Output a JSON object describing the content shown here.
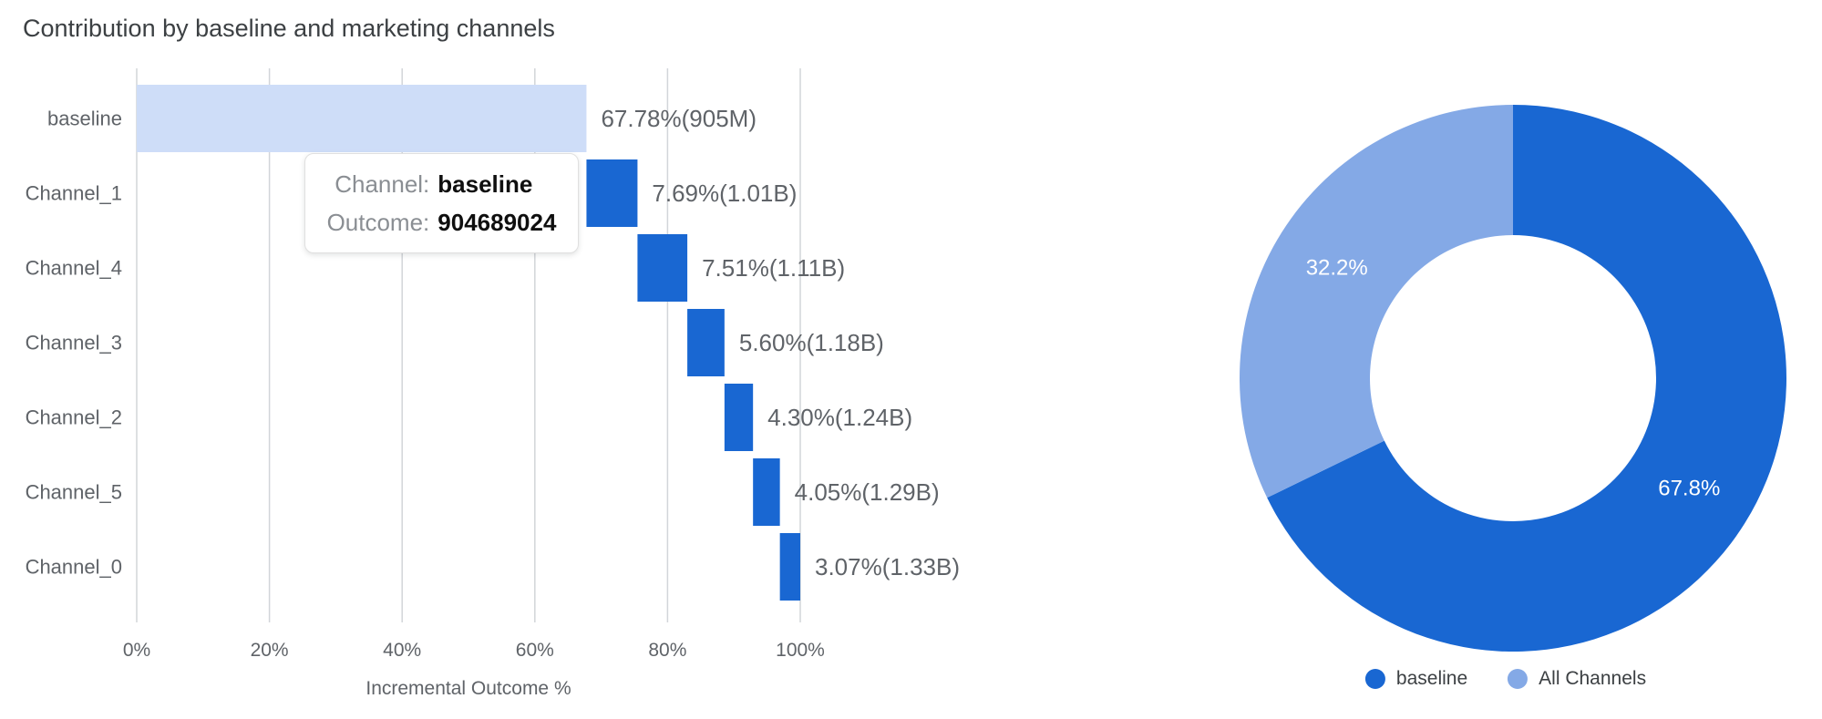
{
  "page": {
    "title": "Contribution by baseline and marketing channels"
  },
  "colors": {
    "channel_bar_blue": "#1967D2",
    "baseline_bar_blue": "#CEDDF8",
    "donut_dark_blue": "#1967D2",
    "donut_light_blue": "#84A9E6",
    "grid_line": "#D2D5D9",
    "title_text": "#3C4043",
    "axis_text": "#5F6368",
    "value_label_text": "#5F6368",
    "donut_label_text": "#FFFFFF"
  },
  "tooltip": {
    "channel_label": "Channel:",
    "channel_value": "baseline",
    "outcome_label": "Outcome:",
    "outcome_value": "904689024"
  },
  "chart_data": [
    {
      "type": "bar",
      "subtype": "horizontal_waterfall",
      "title": "Contribution by baseline and marketing channels",
      "categories": [
        "baseline",
        "Channel_1",
        "Channel_4",
        "Channel_3",
        "Channel_2",
        "Channel_5",
        "Channel_0"
      ],
      "values_pct": [
        67.78,
        7.69,
        7.51,
        5.6,
        4.3,
        4.05,
        3.07
      ],
      "cumulative_start_pct": [
        0,
        67.78,
        75.47,
        82.98,
        88.58,
        92.88,
        96.93
      ],
      "bar_labels": [
        "67.78%(905M)",
        "7.69%(1.01B)",
        "7.51%(1.11B)",
        "5.60%(1.18B)",
        "4.30%(1.24B)",
        "4.05%(1.29B)",
        "3.07%(1.33B)"
      ],
      "xlabel": "Incremental Outcome %",
      "x_tick_labels": [
        "0%",
        "20%",
        "40%",
        "60%",
        "80%",
        "100%"
      ],
      "x_tick_values": [
        0,
        20,
        40,
        60,
        80,
        100
      ],
      "xlim": [
        0,
        100
      ],
      "grid": true
    },
    {
      "type": "pie",
      "subtype": "donut",
      "start_angle_deg": 0,
      "direction": "clockwise",
      "slices": [
        {
          "label": "baseline",
          "value_pct": 67.8,
          "display": "67.8%"
        },
        {
          "label": "All Channels",
          "value_pct": 32.2,
          "display": "32.2%"
        }
      ],
      "legend_position": "bottom-center"
    }
  ]
}
